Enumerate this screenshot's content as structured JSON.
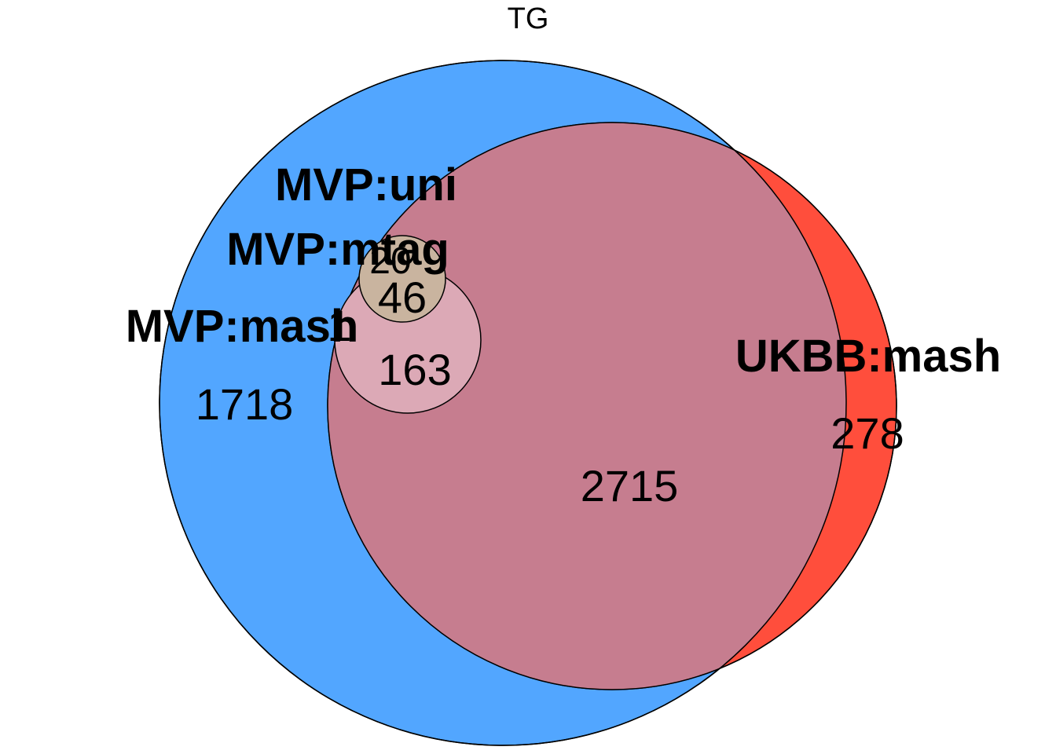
{
  "title": "TG",
  "sets": {
    "mvp_mash": {
      "label": "MVP:mash",
      "color": "#52A6FF"
    },
    "ukbb_mash": {
      "label": "UKBB:mash",
      "color": "#FF4E3C"
    },
    "mvp_uni": {
      "label": "MVP:uni",
      "color": "#DCA9B6"
    },
    "mvp_mtag": {
      "label": "MVP:mtag",
      "color": "#C9B49F"
    },
    "overlap_color": "#C67D8F"
  },
  "counts": {
    "mvp_mash_only": "1718",
    "ukbb_mash_only": "278",
    "mash_overlap": "2715",
    "uni_region": "163",
    "mtag_region": "46",
    "mtag_top": "20",
    "edge_sliver": "1"
  }
}
